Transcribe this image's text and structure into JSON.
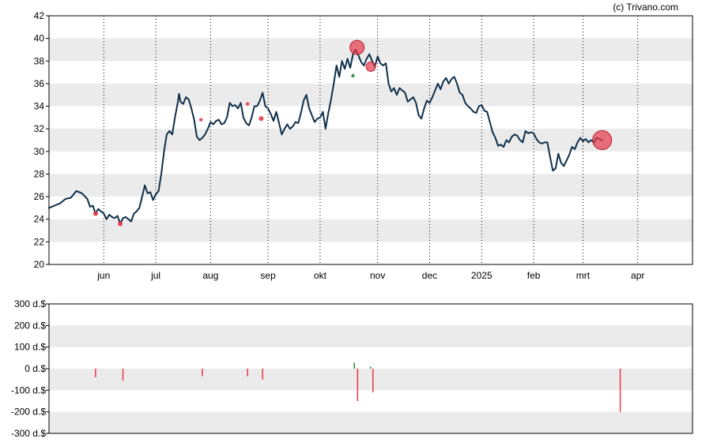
{
  "credit": "(c) Trivano.com",
  "colors": {
    "band": "#ebebeb",
    "price_line": "#0f2f4a",
    "negative": "#e8364a",
    "positive": "#2e8b3a",
    "grid": "#000000"
  },
  "chart_data": [
    {
      "type": "line",
      "name": "price-panel",
      "ylim": [
        20,
        42
      ],
      "yticks": [
        20,
        22,
        24,
        26,
        28,
        30,
        32,
        34,
        36,
        38,
        40,
        42
      ],
      "xlim": [
        0,
        235
      ],
      "month_ticks": [
        {
          "label": "jun",
          "x": 20
        },
        {
          "label": "jul",
          "x": 39
        },
        {
          "label": "aug",
          "x": 59
        },
        {
          "label": "sep",
          "x": 80
        },
        {
          "label": "okt",
          "x": 99
        },
        {
          "label": "nov",
          "x": 120
        },
        {
          "label": "dec",
          "x": 139
        },
        {
          "label": "2025",
          "x": 158
        },
        {
          "label": "feb",
          "x": 177
        },
        {
          "label": "mrt",
          "x": 195
        },
        {
          "label": "apr",
          "x": 215
        }
      ],
      "grid": "vertical dotted at month ticks, horizontal alternating bands",
      "series": [
        {
          "values": [
            [
              0,
              25.0
            ],
            [
              2,
              25.2
            ],
            [
              4,
              25.4
            ],
            [
              6,
              25.8
            ],
            [
              8,
              25.9
            ],
            [
              10,
              26.5
            ],
            [
              12,
              26.3
            ],
            [
              14,
              25.8
            ],
            [
              15,
              25.1
            ],
            [
              16,
              25.2
            ],
            [
              17,
              24.5
            ],
            [
              18,
              24.9
            ],
            [
              19,
              24.7
            ],
            [
              20,
              24.5
            ],
            [
              21,
              24.0
            ],
            [
              22,
              24.4
            ],
            [
              23,
              24.2
            ],
            [
              24,
              24.1
            ],
            [
              25,
              24.3
            ],
            [
              26,
              23.6
            ],
            [
              27,
              24.1
            ],
            [
              28,
              24.2
            ],
            [
              29,
              24.0
            ],
            [
              30,
              23.8
            ],
            [
              31,
              24.5
            ],
            [
              32,
              24.7
            ],
            [
              33,
              25.0
            ],
            [
              34,
              26.0
            ],
            [
              35,
              27.0
            ],
            [
              36,
              26.3
            ],
            [
              37,
              26.4
            ],
            [
              38,
              25.7
            ],
            [
              39,
              26.2
            ],
            [
              40,
              26.5
            ],
            [
              41,
              28.0
            ],
            [
              42,
              30.0
            ],
            [
              43,
              31.5
            ],
            [
              44,
              31.8
            ],
            [
              45,
              31.5
            ],
            [
              46,
              33.0
            ],
            [
              47,
              34.3
            ],
            [
              47.5,
              35.1
            ],
            [
              48,
              34.4
            ],
            [
              49,
              34.2
            ],
            [
              50,
              34.8
            ],
            [
              51,
              34.6
            ],
            [
              52,
              33.8
            ],
            [
              53,
              32.8
            ],
            [
              54,
              31.3
            ],
            [
              55,
              31.0
            ],
            [
              56,
              31.2
            ],
            [
              57,
              31.5
            ],
            [
              58,
              32.0
            ],
            [
              59,
              32.6
            ],
            [
              60,
              32.4
            ],
            [
              61,
              32.7
            ],
            [
              62,
              32.8
            ],
            [
              63,
              32.4
            ],
            [
              64,
              32.5
            ],
            [
              65,
              33.0
            ],
            [
              66,
              34.3
            ],
            [
              67,
              34.0
            ],
            [
              68,
              34.1
            ],
            [
              69,
              33.8
            ],
            [
              70,
              34.3
            ],
            [
              71,
              33.0
            ],
            [
              72,
              32.5
            ],
            [
              73,
              32.3
            ],
            [
              74,
              33.0
            ],
            [
              75,
              34.0
            ],
            [
              76,
              34.0
            ],
            [
              77,
              34.5
            ],
            [
              78,
              35.2
            ],
            [
              79,
              34.0
            ],
            [
              80,
              33.8
            ],
            [
              81,
              33.3
            ],
            [
              82,
              32.7
            ],
            [
              83,
              33.5
            ],
            [
              84,
              32.5
            ],
            [
              85,
              31.5
            ],
            [
              86,
              32.0
            ],
            [
              87,
              32.4
            ],
            [
              88,
              32.0
            ],
            [
              89,
              32.2
            ],
            [
              90,
              32.6
            ],
            [
              91,
              32.5
            ],
            [
              92,
              33.4
            ],
            [
              93,
              34.5
            ],
            [
              94,
              35.0
            ],
            [
              95,
              33.8
            ],
            [
              96,
              33.2
            ],
            [
              97,
              32.6
            ],
            [
              98,
              32.9
            ],
            [
              99,
              33.0
            ],
            [
              100,
              33.5
            ],
            [
              101,
              32.0
            ],
            [
              102,
              33.4
            ],
            [
              103,
              34.6
            ],
            [
              104,
              36.0
            ],
            [
              105,
              37.6
            ],
            [
              106,
              36.6
            ],
            [
              107,
              38.0
            ],
            [
              108,
              37.3
            ],
            [
              109,
              38.2
            ],
            [
              110,
              37.4
            ],
            [
              111,
              38.6
            ],
            [
              112,
              39.0
            ],
            [
              113,
              38.5
            ],
            [
              114,
              37.9
            ],
            [
              115,
              37.6
            ],
            [
              116,
              38.2
            ],
            [
              117,
              38.6
            ],
            [
              118,
              38.0
            ],
            [
              119,
              37.5
            ],
            [
              120,
              38.4
            ],
            [
              121,
              37.8
            ],
            [
              122,
              37.6
            ],
            [
              123,
              37.8
            ],
            [
              124,
              36.0
            ],
            [
              125,
              35.3
            ],
            [
              126,
              35.6
            ],
            [
              127,
              35.0
            ],
            [
              128,
              35.6
            ],
            [
              129,
              35.4
            ],
            [
              130,
              35.2
            ],
            [
              131,
              34.4
            ],
            [
              132,
              34.6
            ],
            [
              133,
              34.8
            ],
            [
              134,
              34.3
            ],
            [
              135,
              33.2
            ],
            [
              136,
              32.9
            ],
            [
              137,
              33.8
            ],
            [
              138,
              34.5
            ],
            [
              139,
              34.3
            ],
            [
              140,
              34.8
            ],
            [
              141,
              35.4
            ],
            [
              142,
              36.0
            ],
            [
              143,
              35.5
            ],
            [
              144,
              36.2
            ],
            [
              145,
              36.5
            ],
            [
              146,
              36.0
            ],
            [
              147,
              36.4
            ],
            [
              148,
              36.6
            ],
            [
              149,
              36.0
            ],
            [
              150,
              35.2
            ],
            [
              151,
              35.0
            ],
            [
              152,
              34.3
            ],
            [
              153,
              34.0
            ],
            [
              154,
              33.8
            ],
            [
              155,
              33.5
            ],
            [
              156,
              33.4
            ],
            [
              157,
              34.0
            ],
            [
              158,
              34.1
            ],
            [
              159,
              33.6
            ],
            [
              160,
              33.5
            ],
            [
              161,
              32.6
            ],
            [
              162,
              31.7
            ],
            [
              163,
              31.2
            ],
            [
              164,
              30.5
            ],
            [
              165,
              30.6
            ],
            [
              166,
              30.4
            ],
            [
              167,
              31.0
            ],
            [
              168,
              30.8
            ],
            [
              169,
              31.3
            ],
            [
              170,
              31.5
            ],
            [
              171,
              31.4
            ],
            [
              172,
              31.0
            ],
            [
              173,
              30.8
            ],
            [
              174,
              31.8
            ],
            [
              175,
              31.6
            ],
            [
              176,
              31.7
            ],
            [
              177,
              31.6
            ],
            [
              178,
              31.1
            ],
            [
              179,
              30.8
            ],
            [
              180,
              30.7
            ],
            [
              181,
              30.8
            ],
            [
              182,
              30.8
            ],
            [
              183,
              29.5
            ],
            [
              184,
              28.3
            ],
            [
              185,
              28.5
            ],
            [
              186,
              29.8
            ],
            [
              187,
              29.0
            ],
            [
              188,
              28.7
            ],
            [
              189,
              29.2
            ],
            [
              190,
              29.7
            ],
            [
              191,
              30.4
            ],
            [
              192,
              30.2
            ],
            [
              193,
              30.8
            ],
            [
              194,
              31.2
            ],
            [
              195,
              30.9
            ],
            [
              196,
              31.1
            ],
            [
              197,
              30.8
            ],
            [
              198,
              31.0
            ],
            [
              199,
              30.8
            ],
            [
              200,
              31.2
            ],
            [
              201,
              31.1
            ],
            [
              202,
              31.0
            ]
          ]
        }
      ],
      "markers": [
        {
          "x": 17,
          "y": 24.5,
          "r": 3,
          "color": "negative"
        },
        {
          "x": 26,
          "y": 23.6,
          "r": 3,
          "color": "negative"
        },
        {
          "x": 55.5,
          "y": 32.8,
          "r": 2.2,
          "color": "negative"
        },
        {
          "x": 72.5,
          "y": 34.2,
          "r": 2.2,
          "color": "negative"
        },
        {
          "x": 77.5,
          "y": 32.9,
          "r": 3,
          "color": "negative"
        },
        {
          "x": 111,
          "y": 36.7,
          "r": 2.2,
          "color": "positive"
        },
        {
          "x": 112.5,
          "y": 39.2,
          "r": 9,
          "color": "negative"
        },
        {
          "x": 117.5,
          "y": 37.5,
          "r": 6,
          "color": "negative"
        },
        {
          "x": 202,
          "y": 31.0,
          "r": 12,
          "color": "negative"
        }
      ]
    },
    {
      "type": "bar",
      "name": "dividend-panel",
      "ylim": [
        -300,
        300
      ],
      "yticks": [
        -300,
        -200,
        -100,
        0,
        100,
        200,
        300
      ],
      "ytick_labels": [
        "-300 d.$",
        "-200 d.$",
        "-100 d.$",
        "0 d.$",
        "100 d.$",
        "200 d.$",
        "300 d.$"
      ],
      "bars": [
        {
          "x": 17,
          "value": -40
        },
        {
          "x": 27,
          "value": -55
        },
        {
          "x": 56,
          "value": -35
        },
        {
          "x": 72.5,
          "value": -35
        },
        {
          "x": 78,
          "value": -50
        },
        {
          "x": 111.5,
          "value": 28
        },
        {
          "x": 112.7,
          "value": -150
        },
        {
          "x": 117.4,
          "value": 10
        },
        {
          "x": 118.3,
          "value": -110
        },
        {
          "x": 208.6,
          "value": -200
        }
      ]
    }
  ]
}
